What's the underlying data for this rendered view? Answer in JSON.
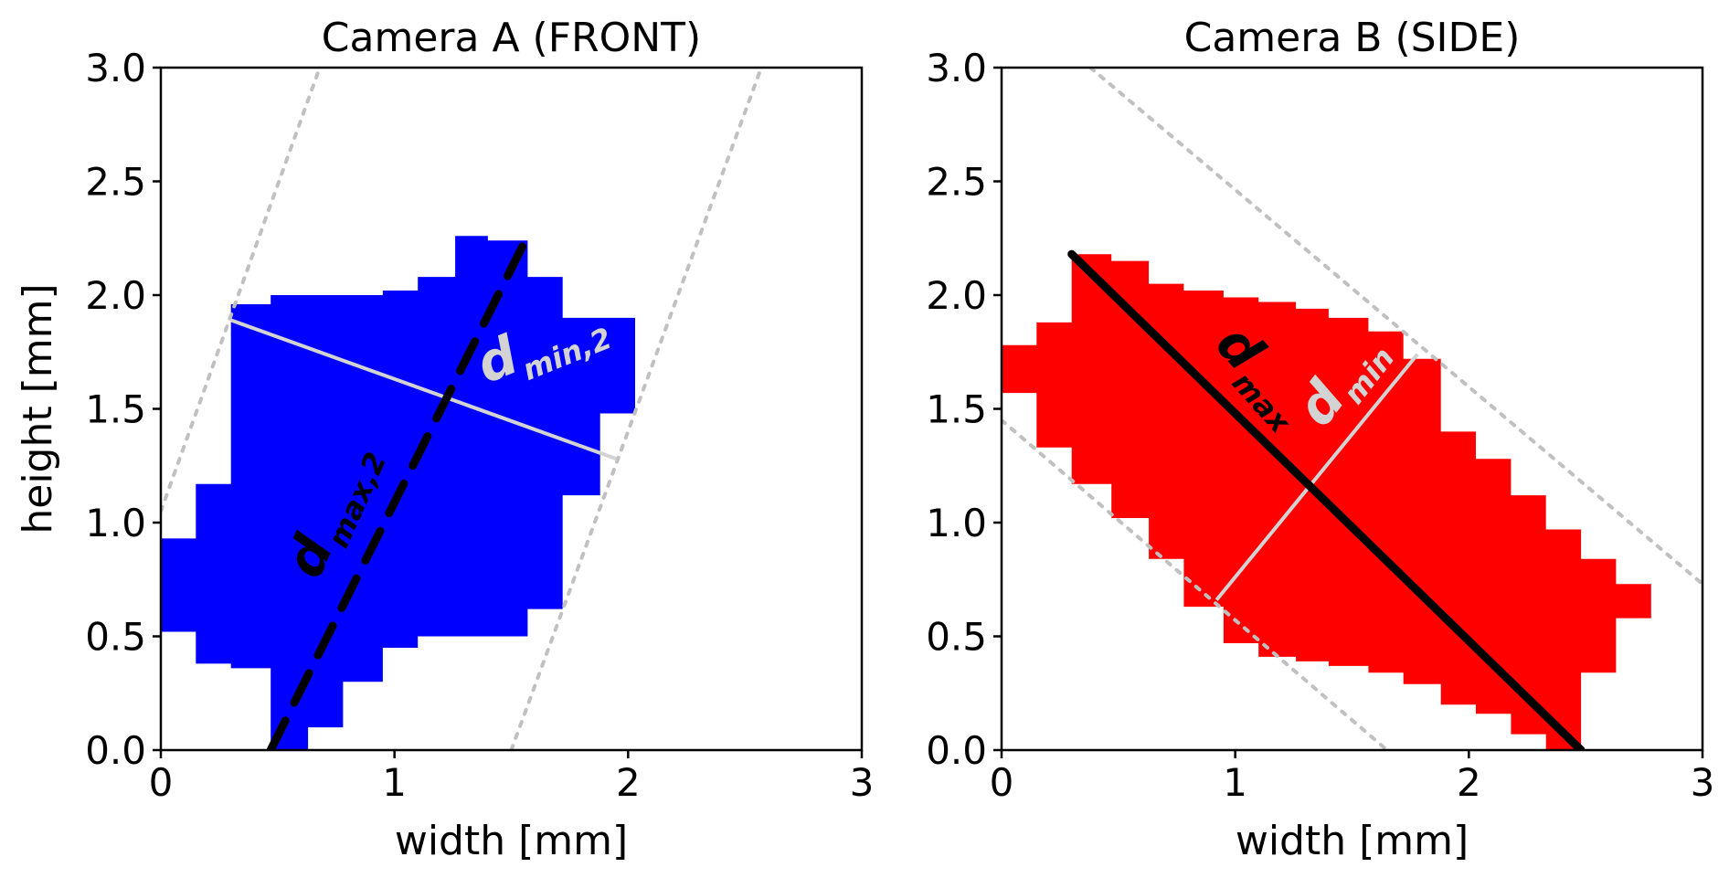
{
  "chart_data": [
    {
      "type": "area",
      "title": "Camera A (FRONT)",
      "xlabel": "width [mm]",
      "ylabel": "height [mm]",
      "xlim": [
        0,
        3
      ],
      "ylim": [
        0,
        3
      ],
      "x_ticks": [
        "0",
        "1",
        "2",
        "3"
      ],
      "y_ticks": [
        "0.0",
        "0.5",
        "1.0",
        "1.5",
        "2.0",
        "2.5",
        "3.0"
      ],
      "grid": false,
      "fill_color": "#0000ff",
      "shape_outline": [
        [
          0.47,
          0.0
        ],
        [
          0.63,
          0.0
        ],
        [
          0.63,
          0.1
        ],
        [
          0.78,
          0.1
        ],
        [
          0.78,
          0.3
        ],
        [
          0.95,
          0.3
        ],
        [
          0.95,
          0.45
        ],
        [
          1.1,
          0.45
        ],
        [
          1.1,
          0.5
        ],
        [
          1.57,
          0.5
        ],
        [
          1.57,
          0.62
        ],
        [
          1.72,
          0.62
        ],
        [
          1.72,
          1.12
        ],
        [
          1.88,
          1.12
        ],
        [
          1.88,
          1.48
        ],
        [
          2.03,
          1.48
        ],
        [
          2.03,
          1.9
        ],
        [
          1.72,
          1.9
        ],
        [
          1.72,
          2.08
        ],
        [
          1.57,
          2.08
        ],
        [
          1.57,
          2.24
        ],
        [
          1.4,
          2.24
        ],
        [
          1.4,
          2.26
        ],
        [
          1.26,
          2.26
        ],
        [
          1.26,
          2.08
        ],
        [
          1.1,
          2.08
        ],
        [
          1.1,
          2.02
        ],
        [
          0.95,
          2.02
        ],
        [
          0.95,
          2.0
        ],
        [
          0.47,
          2.0
        ],
        [
          0.47,
          1.96
        ],
        [
          0.3,
          1.96
        ],
        [
          0.3,
          1.88
        ],
        [
          0.3,
          1.88
        ],
        [
          0.3,
          1.17
        ],
        [
          0.15,
          1.17
        ],
        [
          0.15,
          0.93
        ],
        [
          0.0,
          0.93
        ],
        [
          0.0,
          0.52
        ],
        [
          0.15,
          0.52
        ],
        [
          0.15,
          0.38
        ],
        [
          0.3,
          0.38
        ],
        [
          0.3,
          0.36
        ],
        [
          0.47,
          0.36
        ]
      ],
      "lines": [
        {
          "role": "d_max",
          "style": "dashed",
          "color": "#000000",
          "x": [
            0.47,
            1.57
          ],
          "y": [
            0.0,
            2.26
          ]
        },
        {
          "role": "d_min",
          "style": "solid",
          "color": "#d3d3d3",
          "x": [
            0.3,
            1.95
          ],
          "y": [
            1.89,
            1.28
          ]
        },
        {
          "role": "bound",
          "style": "dotted",
          "color": "#c0c0c0",
          "x": [
            0.0,
            0.68
          ],
          "y": [
            1.05,
            3.0
          ]
        },
        {
          "role": "bound",
          "style": "dotted",
          "color": "#c0c0c0",
          "x": [
            1.5,
            2.57
          ],
          "y": [
            0.0,
            3.0
          ]
        }
      ],
      "annotations": [
        {
          "main": "d",
          "sub": "max,2",
          "color": "#000000"
        },
        {
          "main": "d",
          "sub": "min,2",
          "color": "#d3d3d3"
        }
      ]
    },
    {
      "type": "area",
      "title": "Camera B (SIDE)",
      "xlabel": "width [mm]",
      "ylabel": "",
      "xlim": [
        0,
        3
      ],
      "ylim": [
        0,
        3
      ],
      "x_ticks": [
        "0",
        "1",
        "2",
        "3"
      ],
      "y_ticks": [
        "0.0",
        "0.5",
        "1.0",
        "1.5",
        "2.0",
        "2.5",
        "3.0"
      ],
      "grid": false,
      "fill_color": "#ff0000",
      "shape_outline": [
        [
          0.0,
          1.57
        ],
        [
          0.0,
          1.78
        ],
        [
          0.15,
          1.78
        ],
        [
          0.15,
          1.88
        ],
        [
          0.3,
          1.88
        ],
        [
          0.3,
          2.18
        ],
        [
          0.47,
          2.18
        ],
        [
          0.47,
          2.15
        ],
        [
          0.63,
          2.15
        ],
        [
          0.63,
          2.05
        ],
        [
          0.78,
          2.05
        ],
        [
          0.78,
          2.02
        ],
        [
          0.95,
          2.02
        ],
        [
          0.95,
          1.99
        ],
        [
          1.1,
          1.99
        ],
        [
          1.1,
          1.97
        ],
        [
          1.26,
          1.97
        ],
        [
          1.26,
          1.94
        ],
        [
          1.4,
          1.94
        ],
        [
          1.4,
          1.9
        ],
        [
          1.57,
          1.9
        ],
        [
          1.57,
          1.84
        ],
        [
          1.72,
          1.84
        ],
        [
          1.72,
          1.72
        ],
        [
          1.88,
          1.72
        ],
        [
          1.88,
          1.4
        ],
        [
          2.03,
          1.4
        ],
        [
          2.03,
          1.28
        ],
        [
          2.18,
          1.28
        ],
        [
          2.18,
          1.12
        ],
        [
          2.33,
          1.12
        ],
        [
          2.33,
          0.97
        ],
        [
          2.48,
          0.97
        ],
        [
          2.48,
          0.84
        ],
        [
          2.63,
          0.84
        ],
        [
          2.63,
          0.73
        ],
        [
          2.78,
          0.73
        ],
        [
          2.78,
          0.58
        ],
        [
          2.63,
          0.58
        ],
        [
          2.63,
          0.34
        ],
        [
          2.48,
          0.34
        ],
        [
          2.48,
          0.0
        ],
        [
          2.33,
          0.0
        ],
        [
          2.33,
          0.07
        ],
        [
          2.18,
          0.07
        ],
        [
          2.18,
          0.16
        ],
        [
          2.03,
          0.16
        ],
        [
          2.03,
          0.2
        ],
        [
          1.88,
          0.2
        ],
        [
          1.88,
          0.29
        ],
        [
          1.72,
          0.29
        ],
        [
          1.72,
          0.34
        ],
        [
          1.57,
          0.34
        ],
        [
          1.57,
          0.37
        ],
        [
          1.4,
          0.37
        ],
        [
          1.4,
          0.39
        ],
        [
          1.26,
          0.39
        ],
        [
          1.26,
          0.41
        ],
        [
          1.1,
          0.41
        ],
        [
          1.1,
          0.47
        ],
        [
          0.95,
          0.47
        ],
        [
          0.95,
          0.63
        ],
        [
          0.78,
          0.63
        ],
        [
          0.78,
          0.84
        ],
        [
          0.63,
          0.84
        ],
        [
          0.63,
          1.02
        ],
        [
          0.47,
          1.02
        ],
        [
          0.47,
          1.17
        ],
        [
          0.3,
          1.17
        ],
        [
          0.3,
          1.33
        ],
        [
          0.15,
          1.33
        ],
        [
          0.15,
          1.42
        ],
        [
          0.15,
          1.57
        ]
      ],
      "lines": [
        {
          "role": "d_max",
          "style": "solid",
          "color": "#000000",
          "x": [
            0.3,
            2.48
          ],
          "y": [
            2.18,
            0.0
          ]
        },
        {
          "role": "d_min",
          "style": "solid",
          "color": "#d3d3d3",
          "x": [
            0.92,
            1.78
          ],
          "y": [
            0.66,
            1.74
          ]
        },
        {
          "role": "bound",
          "style": "dotted",
          "color": "#c0c0c0",
          "x": [
            0.38,
            3.0
          ],
          "y": [
            3.0,
            0.73
          ]
        },
        {
          "role": "bound",
          "style": "dotted",
          "color": "#c0c0c0",
          "x": [
            0.0,
            1.65
          ],
          "y": [
            1.45,
            0.0
          ]
        }
      ],
      "annotations": [
        {
          "main": "d",
          "sub": "max",
          "color": "#000000"
        },
        {
          "main": "d",
          "sub": "min",
          "color": "#d3d3d3"
        }
      ]
    }
  ]
}
